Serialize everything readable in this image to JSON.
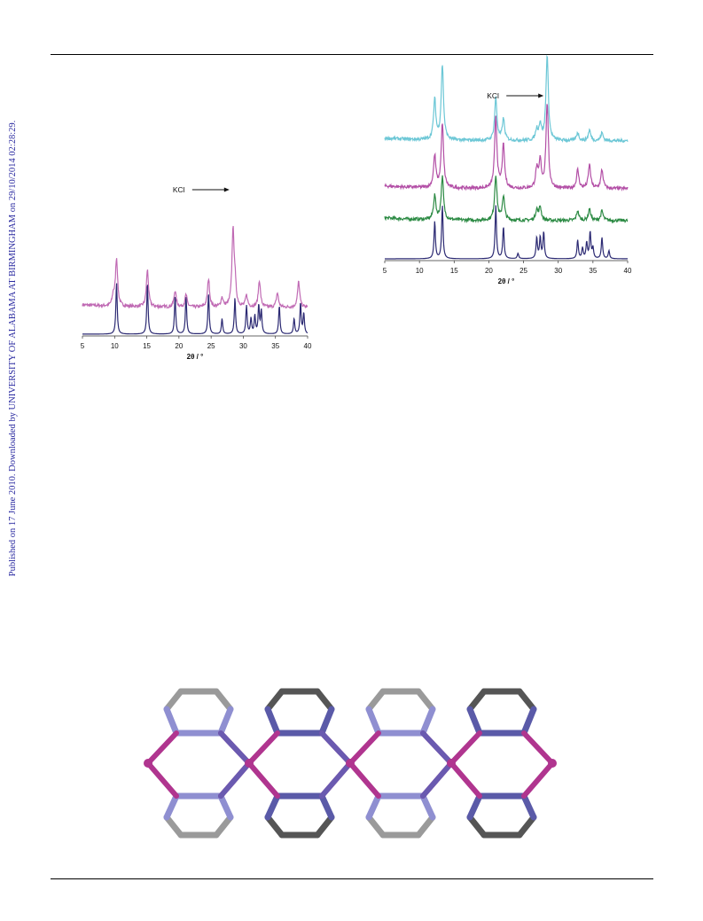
{
  "side_note": "Published on 17 June 2010. Downloaded by UNIVERSITY OF ALABAMA AT BIRMINGHAM on 29/10/2014 02:28:29.",
  "colors": {
    "rule": "#000000",
    "navy": "#2c2a73",
    "magenta": "#b34fa6",
    "magenta_light": "#c06ab4",
    "green": "#2b8a43",
    "cyan": "#6cc7d6",
    "grey": "#9a9a9a",
    "dark_grey": "#555555",
    "periwinkle": "#8f8fd1",
    "deep_magenta": "#b0358f"
  },
  "chart_data": [
    {
      "type": "line",
      "title": "",
      "xlabel": "2θ / °",
      "ylabel": "",
      "xlim": [
        5,
        40
      ],
      "xticks": [
        "5",
        "10",
        "15",
        "20",
        "25",
        "30",
        "35",
        "40"
      ],
      "grid": false,
      "annotations": [
        {
          "text": "KCl",
          "x": 28.4,
          "arrow": true
        }
      ],
      "series": [
        {
          "role": "simulated",
          "color": "#2c2a73",
          "offset": 0,
          "peaks": [
            [
              10.3,
              1.0
            ],
            [
              15.1,
              1.0
            ],
            [
              19.4,
              0.75
            ],
            [
              21.1,
              0.75
            ],
            [
              24.6,
              0.8
            ],
            [
              26.7,
              0.3
            ],
            [
              28.7,
              0.7
            ],
            [
              30.5,
              0.55
            ],
            [
              31.2,
              0.3
            ],
            [
              31.8,
              0.35
            ],
            [
              32.4,
              0.55
            ],
            [
              32.8,
              0.45
            ],
            [
              35.6,
              0.55
            ],
            [
              37.9,
              0.3
            ],
            [
              38.9,
              0.6
            ],
            [
              39.4,
              0.4
            ]
          ]
        },
        {
          "role": "experimental",
          "color": "#c06ab4",
          "offset": 0.52,
          "peaks": [
            [
              9.8,
              0.2
            ],
            [
              10.3,
              0.92
            ],
            [
              15.1,
              0.72
            ],
            [
              19.4,
              0.32
            ],
            [
              21.1,
              0.24
            ],
            [
              24.6,
              0.55
            ],
            [
              26.7,
              0.18
            ],
            [
              28.4,
              1.45
            ],
            [
              28.7,
              0.4
            ],
            [
              30.5,
              0.22
            ],
            [
              32.5,
              0.52
            ],
            [
              35.3,
              0.28
            ],
            [
              38.6,
              0.5
            ]
          ]
        }
      ]
    },
    {
      "type": "line",
      "title": "",
      "xlabel": "2θ / °",
      "ylabel": "",
      "xlim": [
        5,
        40
      ],
      "xticks": [
        "5",
        "10",
        "15",
        "20",
        "25",
        "30",
        "35",
        "40"
      ],
      "grid": false,
      "annotations": [
        {
          "text": "KCl",
          "x": 28.4,
          "arrow": true
        }
      ],
      "series": [
        {
          "role": "simulated",
          "color": "#2c2a73",
          "offset": 0,
          "peaks": [
            [
              12.2,
              0.7
            ],
            [
              13.3,
              1.0
            ],
            [
              21.0,
              1.0
            ],
            [
              22.1,
              0.6
            ],
            [
              24.2,
              0.1
            ],
            [
              26.9,
              0.4
            ],
            [
              27.4,
              0.4
            ],
            [
              27.9,
              0.5
            ],
            [
              32.8,
              0.35
            ],
            [
              33.5,
              0.2
            ],
            [
              34.1,
              0.3
            ],
            [
              34.6,
              0.5
            ],
            [
              35.0,
              0.2
            ],
            [
              36.3,
              0.4
            ],
            [
              37.3,
              0.15
            ]
          ]
        },
        {
          "role": "experimental",
          "color": "#2b8a43",
          "offset": 0.72,
          "peaks": [
            [
              12.2,
              0.45
            ],
            [
              13.3,
              0.8
            ],
            [
              21.0,
              0.85
            ],
            [
              22.1,
              0.45
            ],
            [
              26.9,
              0.2
            ],
            [
              27.4,
              0.25
            ],
            [
              32.8,
              0.18
            ],
            [
              34.5,
              0.22
            ],
            [
              36.3,
              0.18
            ]
          ]
        },
        {
          "role": "experimental",
          "color": "#b34fa6",
          "offset": 1.32,
          "peaks": [
            [
              12.2,
              0.6
            ],
            [
              13.3,
              1.2
            ],
            [
              21.0,
              1.35
            ],
            [
              22.1,
              0.8
            ],
            [
              26.9,
              0.35
            ],
            [
              27.4,
              0.5
            ],
            [
              28.4,
              1.6
            ],
            [
              32.8,
              0.35
            ],
            [
              34.5,
              0.45
            ],
            [
              36.3,
              0.35
            ]
          ]
        },
        {
          "role": "experimental",
          "color": "#6cc7d6",
          "offset": 2.22,
          "peaks": [
            [
              12.2,
              0.75
            ],
            [
              13.3,
              1.4
            ],
            [
              21.0,
              0.8
            ],
            [
              22.1,
              0.4
            ],
            [
              26.9,
              0.2
            ],
            [
              27.4,
              0.3
            ],
            [
              28.4,
              1.6
            ],
            [
              32.8,
              0.15
            ],
            [
              34.5,
              0.2
            ],
            [
              36.3,
              0.15
            ]
          ]
        }
      ]
    }
  ]
}
